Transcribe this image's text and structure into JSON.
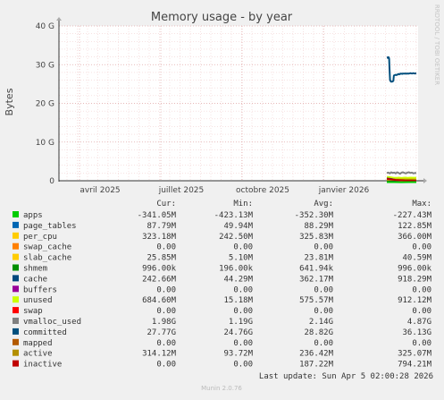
{
  "chart_data": {
    "type": "line",
    "title": "Memory usage - by year",
    "ylabel": "Bytes",
    "watermark": "RRDTOOL / TOBI OETIKER",
    "y_ticks": [
      "0",
      "10 G",
      "20 G",
      "30 G",
      "40 G"
    ],
    "y_tick_values": [
      0,
      10,
      20,
      30,
      40
    ],
    "ylim": [
      0,
      40
    ],
    "y_unit": "G (bytes)",
    "x_ticks": [
      "avril 2025",
      "juillet 2025",
      "octobre 2025",
      "janvier 2026"
    ],
    "grid": true,
    "legend_placement": "bottom",
    "columns": [
      "Cur:",
      "Min:",
      "Avg:",
      "Max:"
    ],
    "series": [
      {
        "name": "apps",
        "color": "#00cc00",
        "cur": "-341.05M",
        "min": "-423.13M",
        "avg": "-352.30M",
        "max": "-227.43M"
      },
      {
        "name": "page_tables",
        "color": "#0066b3",
        "cur": "87.79M",
        "min": "49.94M",
        "avg": "88.29M",
        "max": "122.85M"
      },
      {
        "name": "per_cpu",
        "color": "#ffcc00",
        "cur": "323.18M",
        "min": "242.50M",
        "avg": "325.83M",
        "max": "366.00M"
      },
      {
        "name": "swap_cache",
        "color": "#ff8000",
        "cur": "0.00",
        "min": "0.00",
        "avg": "0.00",
        "max": "0.00"
      },
      {
        "name": "slab_cache",
        "color": "#ffcc00",
        "cur": "25.85M",
        "min": "5.10M",
        "avg": "23.81M",
        "max": "40.59M"
      },
      {
        "name": "shmem",
        "color": "#008f00",
        "cur": "996.00k",
        "min": "196.00k",
        "avg": "641.94k",
        "max": "996.00k"
      },
      {
        "name": "cache",
        "color": "#00487d",
        "cur": "242.66M",
        "min": "44.29M",
        "avg": "362.17M",
        "max": "918.29M"
      },
      {
        "name": "buffers",
        "color": "#990099",
        "cur": "0.00",
        "min": "0.00",
        "avg": "0.00",
        "max": "0.00"
      },
      {
        "name": "unused",
        "color": "#ccff00",
        "cur": "684.60M",
        "min": "15.18M",
        "avg": "575.57M",
        "max": "912.12M"
      },
      {
        "name": "swap",
        "color": "#ff0000",
        "cur": "0.00",
        "min": "0.00",
        "avg": "0.00",
        "max": "0.00"
      },
      {
        "name": "vmalloc_used",
        "color": "#808080",
        "cur": "1.98G",
        "min": "1.19G",
        "avg": "2.14G",
        "max": "4.87G"
      },
      {
        "name": "committed",
        "color": "#004f7d",
        "cur": "27.77G",
        "min": "24.76G",
        "avg": "28.82G",
        "max": "36.13G"
      },
      {
        "name": "mapped",
        "color": "#b35a00",
        "cur": "0.00",
        "min": "0.00",
        "avg": "0.00",
        "max": "0.00"
      },
      {
        "name": "active",
        "color": "#b38f00",
        "cur": "314.12M",
        "min": "93.72M",
        "avg": "236.42M",
        "max": "325.07M"
      },
      {
        "name": "inactive",
        "color": "#c00000",
        "cur": "0.00",
        "min": "0.00",
        "avg": "187.22M",
        "max": "794.21M"
      }
    ],
    "plotted_lines": [
      {
        "name": "committed",
        "color": "#004f7d",
        "x": [
          0.0,
          0.018,
          0.03,
          0.04,
          0.05,
          0.055,
          0.06,
          0.07,
          0.08,
          0.09,
          0.11,
          0.14,
          0.18,
          0.22,
          0.23,
          0.24,
          0.3,
          0.33,
          0.4,
          0.42,
          0.45,
          0.48,
          0.52,
          0.55,
          0.6,
          0.7,
          0.75,
          0.8,
          0.85,
          0.9,
          0.95,
          1.0
        ],
        "y": [
          31.8,
          31.8,
          31.9,
          31.8,
          31.9,
          31.7,
          31.9,
          31.8,
          31.5,
          29.0,
          26.0,
          25.6,
          25.6,
          25.8,
          26.5,
          27.2,
          27.4,
          27.3,
          27.6,
          27.5,
          27.6,
          27.7,
          27.6,
          27.7,
          27.7,
          27.7,
          27.7,
          27.8,
          27.7,
          27.8,
          27.7,
          27.77
        ]
      },
      {
        "name": "vmalloc_used",
        "color": "#808080",
        "x": [
          0.0,
          0.05,
          0.1,
          0.15,
          0.2,
          0.25,
          0.3,
          0.35,
          0.4,
          0.45,
          0.5,
          0.55,
          0.6,
          0.65,
          0.7,
          0.75,
          0.8,
          0.85,
          0.9,
          0.95,
          1.0
        ],
        "y": [
          2.0,
          2.1,
          1.9,
          2.2,
          2.0,
          2.1,
          1.9,
          2.2,
          2.0,
          1.8,
          2.1,
          2.2,
          2.0,
          1.9,
          2.1,
          2.2,
          2.0,
          2.1,
          1.9,
          2.0,
          1.98
        ]
      },
      {
        "name": "unused",
        "color": "#ccff00",
        "x": [
          0.0,
          0.1,
          0.2,
          0.3,
          0.4,
          0.5,
          0.6,
          0.7,
          0.8,
          0.9,
          1.0
        ],
        "y": [
          0.9,
          0.8,
          0.7,
          0.6,
          0.7,
          0.6,
          0.7,
          0.65,
          0.7,
          0.68,
          0.68
        ]
      },
      {
        "name": "cache",
        "color": "#00487d",
        "x": [
          0.0,
          0.2,
          0.4,
          0.6,
          0.8,
          1.0
        ],
        "y": [
          0.6,
          0.4,
          0.3,
          0.3,
          0.25,
          0.24
        ]
      },
      {
        "name": "per_cpu",
        "color": "#ffcc00",
        "x": [
          0.0,
          0.25,
          0.5,
          0.75,
          1.0
        ],
        "y": [
          0.33,
          0.32,
          0.33,
          0.32,
          0.32
        ]
      },
      {
        "name": "active",
        "color": "#b38f00",
        "x": [
          0.0,
          0.25,
          0.5,
          0.75,
          1.0
        ],
        "y": [
          0.2,
          0.25,
          0.3,
          0.31,
          0.31
        ]
      },
      {
        "name": "inactive",
        "color": "#c00000",
        "x": [
          0.0,
          0.3,
          0.6,
          1.0
        ],
        "y": [
          0.5,
          0.2,
          0.05,
          0.0
        ]
      },
      {
        "name": "apps",
        "color": "#00cc00",
        "x": [
          0.0,
          0.25,
          0.5,
          0.75,
          1.0
        ],
        "y": [
          -0.35,
          -0.34,
          -0.36,
          -0.34,
          -0.34
        ]
      }
    ]
  },
  "footer": {
    "last_update": "Last update:  Sun Apr  5 02:00:28 2026",
    "version": "Munin 2.0.76"
  }
}
